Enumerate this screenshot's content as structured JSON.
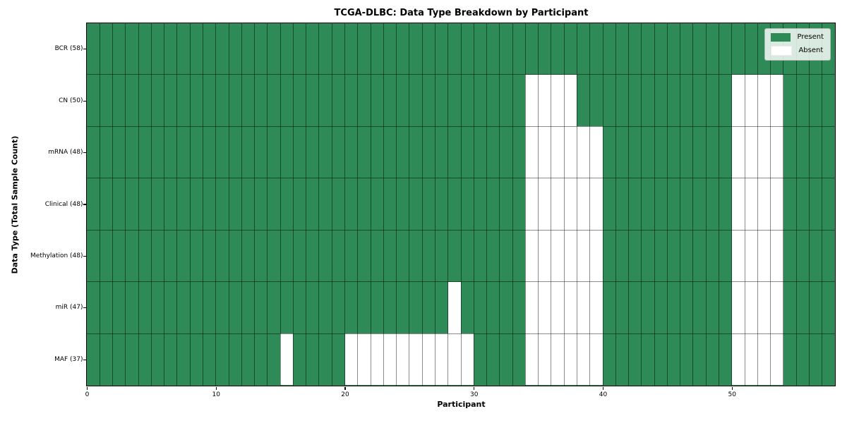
{
  "chart_data": {
    "type": "heatmap",
    "title": "TCGA-DLBC: Data Type Breakdown by Participant",
    "xlabel": "Participant",
    "ylabel": "Data Type (Total Sample Count)",
    "n_participants": 58,
    "x_ticks": [
      0,
      10,
      20,
      30,
      40,
      50
    ],
    "x_range": [
      0,
      58
    ],
    "grid": true,
    "legend_position": "upper right",
    "rows": [
      {
        "label": "BCR (58)",
        "total_samples": 58,
        "absent_participants": []
      },
      {
        "label": "CN (50)",
        "total_samples": 50,
        "absent_participants": [
          34,
          35,
          36,
          37,
          50,
          51,
          52,
          53
        ]
      },
      {
        "label": "mRNA (48)",
        "total_samples": 48,
        "absent_participants": [
          34,
          35,
          36,
          37,
          38,
          39,
          50,
          51,
          52,
          53
        ]
      },
      {
        "label": "Clinical (48)",
        "total_samples": 48,
        "absent_participants": [
          34,
          35,
          36,
          37,
          38,
          39,
          50,
          51,
          52,
          53
        ]
      },
      {
        "label": "Methylation (48)",
        "total_samples": 48,
        "absent_participants": [
          34,
          35,
          36,
          37,
          38,
          39,
          50,
          51,
          52,
          53
        ]
      },
      {
        "label": "miR (47)",
        "total_samples": 47,
        "absent_participants": [
          28,
          34,
          35,
          36,
          37,
          38,
          39,
          50,
          51,
          52,
          53
        ]
      },
      {
        "label": "MAF (37)",
        "total_samples": 37,
        "absent_participants": [
          15,
          20,
          21,
          22,
          23,
          24,
          25,
          26,
          27,
          28,
          29,
          34,
          35,
          36,
          37,
          38,
          39,
          50,
          51,
          52,
          53
        ]
      }
    ],
    "legend": [
      {
        "label": "Present",
        "color": "#2e8b57"
      },
      {
        "label": "Absent",
        "color": "#ffffff"
      }
    ],
    "colors": {
      "present": "#2e8b57",
      "absent": "#ffffff"
    }
  }
}
